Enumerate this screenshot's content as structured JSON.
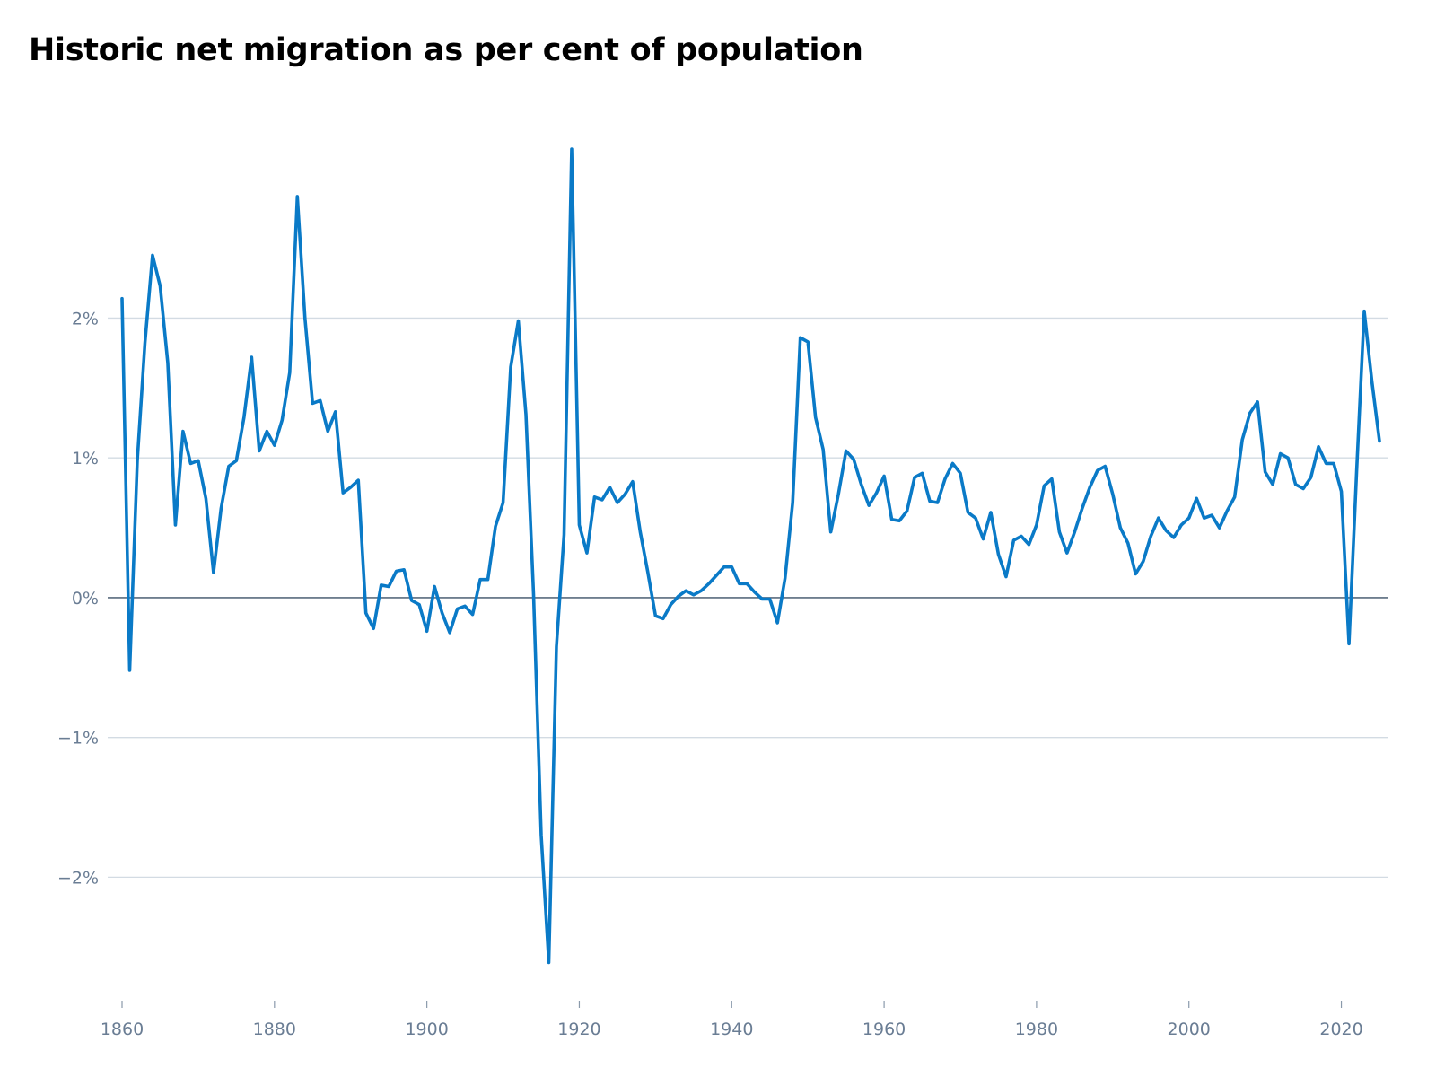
{
  "chart_data": {
    "type": "line",
    "title": "Historic net migration as per cent of population",
    "xlabel": "",
    "ylabel": "",
    "xlim": [
      1860,
      2025
    ],
    "ylim": [
      -2.8,
      3.3
    ],
    "x_ticks": [
      1860,
      1880,
      1900,
      1920,
      1940,
      1960,
      1980,
      2000,
      2020
    ],
    "x_tick_labels": [
      "1860",
      "1880",
      "1900",
      "1920",
      "1940",
      "1960",
      "1980",
      "2000",
      "2020"
    ],
    "y_ticks": [
      2,
      1,
      0,
      -1,
      -2
    ],
    "y_tick_labels": [
      "2%",
      "1%",
      "0%",
      "−1%",
      "−2%"
    ],
    "grid": true,
    "legend": "none",
    "colors": {
      "line": "#0a7ac7",
      "grid": "#d3dbe3",
      "zero_line": "#5a6b7e",
      "tick_text": "#6a7d94"
    },
    "series": [
      {
        "x": [
          1860,
          1861,
          1862,
          1863,
          1864,
          1865,
          1866,
          1867,
          1868,
          1869,
          1870,
          1871,
          1872,
          1873,
          1874,
          1875,
          1876,
          1877,
          1878,
          1879,
          1880,
          1881,
          1882,
          1883,
          1884,
          1885,
          1886,
          1887,
          1888,
          1889,
          1890,
          1891,
          1892,
          1893,
          1894,
          1895,
          1896,
          1897,
          1898,
          1899,
          1900,
          1901,
          1902,
          1903,
          1904,
          1905,
          1906,
          1907,
          1908,
          1909,
          1910,
          1911,
          1912,
          1913,
          1914,
          1915,
          1916,
          1917,
          1918,
          1919,
          1920,
          1921,
          1922,
          1923,
          1924,
          1925,
          1926,
          1927,
          1928,
          1929,
          1930,
          1931,
          1932,
          1933,
          1934,
          1935,
          1936,
          1937,
          1938,
          1939,
          1940,
          1941,
          1942,
          1943,
          1944,
          1945,
          1946,
          1947,
          1948,
          1949,
          1950,
          1951,
          1952,
          1953,
          1954,
          1955,
          1956,
          1957,
          1958,
          1959,
          1960,
          1961,
          1962,
          1963,
          1964,
          1965,
          1966,
          1967,
          1968,
          1969,
          1970,
          1971,
          1972,
          1973,
          1974,
          1975,
          1976,
          1977,
          1978,
          1979,
          1980,
          1981,
          1982,
          1983,
          1984,
          1985,
          1986,
          1987,
          1988,
          1989,
          1990,
          1991,
          1992,
          1993,
          1994,
          1995,
          1996,
          1997,
          1998,
          1999,
          2000,
          2001,
          2002,
          2003,
          2004,
          2005,
          2006,
          2007,
          2008,
          2009,
          2010,
          2011,
          2012,
          2013,
          2014,
          2015,
          2016,
          2017,
          2018,
          2019,
          2020,
          2021,
          2022,
          2023,
          2024,
          2025
        ],
        "values": [
          2.14,
          -0.52,
          0.98,
          1.82,
          2.45,
          2.23,
          1.68,
          0.52,
          1.19,
          0.96,
          0.98,
          0.71,
          0.18,
          0.64,
          0.94,
          0.98,
          1.29,
          1.72,
          1.05,
          1.19,
          1.09,
          1.27,
          1.61,
          2.87,
          2.0,
          1.39,
          1.41,
          1.19,
          1.33,
          0.75,
          0.79,
          0.84,
          -0.11,
          -0.22,
          0.09,
          0.08,
          0.19,
          0.2,
          -0.02,
          -0.05,
          -0.24,
          0.08,
          -0.11,
          -0.25,
          -0.08,
          -0.06,
          -0.12,
          0.13,
          0.13,
          0.51,
          0.68,
          1.65,
          1.98,
          1.31,
          0.02,
          -1.7,
          -2.61,
          -0.35,
          0.45,
          3.21,
          0.52,
          0.32,
          0.72,
          0.7,
          0.79,
          0.68,
          0.74,
          0.83,
          0.47,
          0.18,
          -0.13,
          -0.15,
          -0.05,
          0.01,
          0.05,
          0.02,
          0.05,
          0.1,
          0.16,
          0.22,
          0.22,
          0.1,
          0.1,
          0.04,
          -0.01,
          -0.01,
          -0.18,
          0.14,
          0.68,
          1.86,
          1.83,
          1.29,
          1.06,
          0.47,
          0.74,
          1.05,
          0.99,
          0.81,
          0.66,
          0.75,
          0.87,
          0.56,
          0.55,
          0.62,
          0.86,
          0.89,
          0.69,
          0.68,
          0.85,
          0.96,
          0.89,
          0.61,
          0.57,
          0.42,
          0.61,
          0.31,
          0.15,
          0.41,
          0.44,
          0.38,
          0.52,
          0.8,
          0.85,
          0.47,
          0.32,
          0.47,
          0.64,
          0.79,
          0.91,
          0.94,
          0.74,
          0.5,
          0.39,
          0.17,
          0.26,
          0.44,
          0.57,
          0.48,
          0.43,
          0.52,
          0.57,
          0.71,
          0.57,
          0.59,
          0.5,
          0.62,
          0.72,
          1.13,
          1.32,
          1.4,
          0.9,
          0.81,
          1.03,
          1.0,
          0.81,
          0.78,
          0.86,
          1.08,
          0.96,
          0.96,
          0.76,
          -0.33,
          0.9,
          2.05,
          1.55,
          1.12
        ]
      }
    ]
  }
}
